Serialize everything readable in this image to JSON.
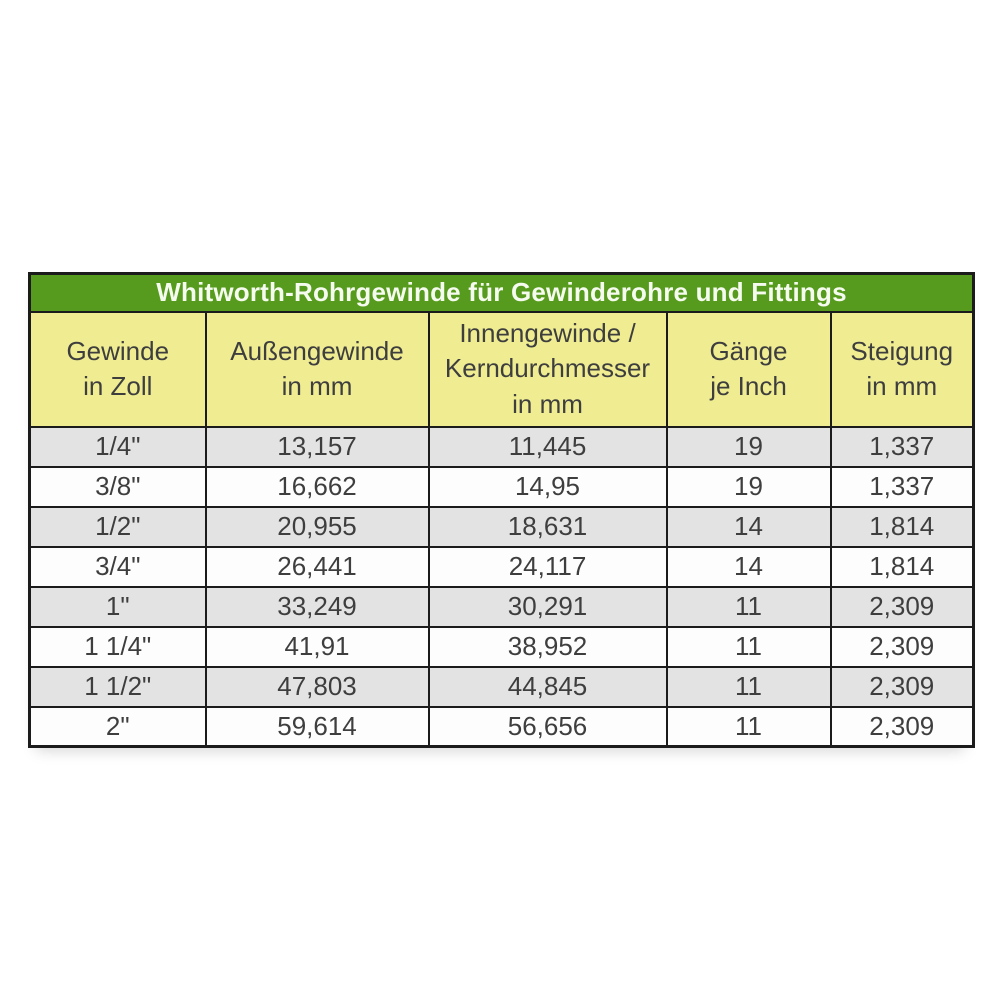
{
  "table": {
    "title": "Whitworth-Rohrgewinde für Gewinderohre und Fittings",
    "columns": [
      {
        "label": "Gewinde\nin Zoll"
      },
      {
        "label": "Außengewinde\nin mm"
      },
      {
        "label": "Innengewinde /\nKerndurchmesser\nin mm"
      },
      {
        "label": "Gänge\nje Inch"
      },
      {
        "label": "Steigung\nin mm"
      }
    ],
    "rows": [
      {
        "cells": [
          "1/4\"",
          "13,157",
          "11,445",
          "19",
          "1,337"
        ]
      },
      {
        "cells": [
          "3/8\"",
          "16,662",
          "14,95",
          "19",
          "1,337"
        ]
      },
      {
        "cells": [
          "1/2\"",
          "20,955",
          "18,631",
          "14",
          "1,814"
        ]
      },
      {
        "cells": [
          "3/4\"",
          "26,441",
          "24,117",
          "14",
          "1,814"
        ]
      },
      {
        "cells": [
          "1\"",
          "33,249",
          "30,291",
          "11",
          "2,309"
        ]
      },
      {
        "cells": [
          "1 1/4\"",
          "41,91",
          "38,952",
          "11",
          "2,309"
        ]
      },
      {
        "cells": [
          "1 1/2\"",
          "47,803",
          "44,845",
          "11",
          "2,309"
        ]
      },
      {
        "cells": [
          "2\"",
          "59,614",
          "56,656",
          "11",
          "2,309"
        ]
      }
    ]
  },
  "colors": {
    "title_background": "#579b1e",
    "title_text": "#f6fbef",
    "header_background": "#efec92",
    "row_alternate": "#e3e3e3",
    "row_base": "#fdfdfd",
    "border": "#1b1b1b",
    "body_text": "#3e3e3e"
  }
}
